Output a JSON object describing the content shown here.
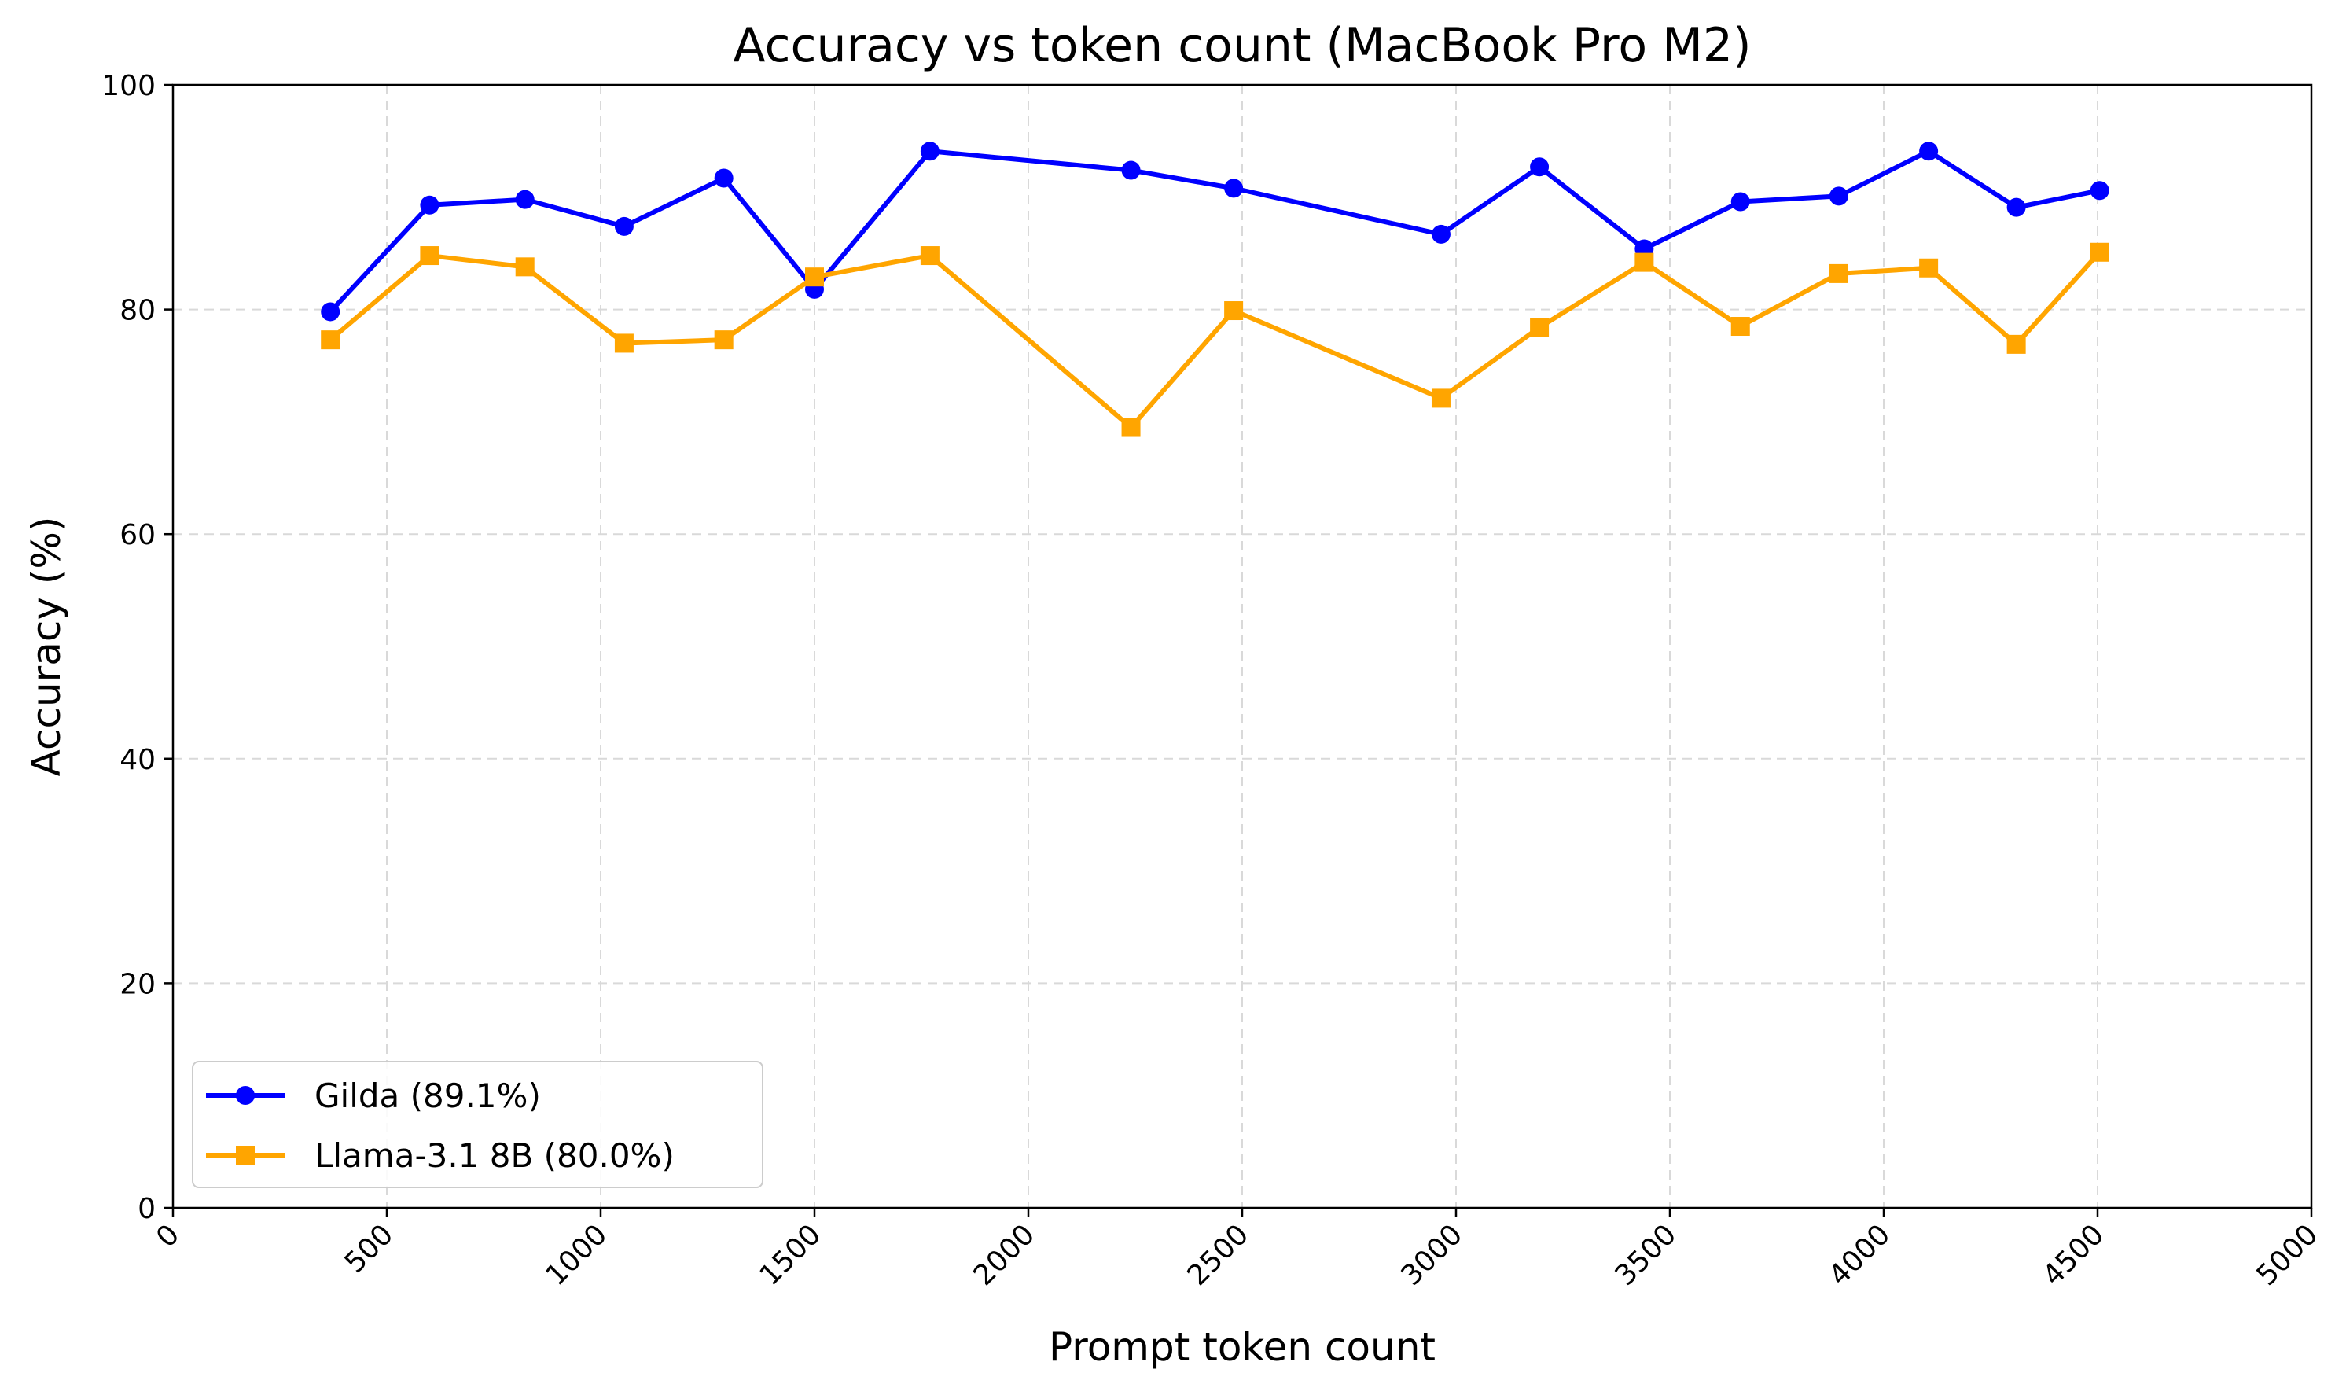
{
  "chart_data": {
    "type": "line",
    "title": "Accuracy vs token count (MacBook Pro M2)",
    "xlabel": "Prompt token count",
    "ylabel": "Accuracy (%)",
    "xlim": [
      0,
      5000
    ],
    "ylim": [
      0,
      100
    ],
    "xticks": [
      "0",
      "500",
      "1000",
      "1500",
      "2000",
      "2500",
      "3000",
      "3500",
      "4000",
      "4500",
      "5000"
    ],
    "yticks": [
      "0",
      "20",
      "40",
      "60",
      "80",
      "100"
    ],
    "grid": true,
    "legend_position": "lower-left",
    "series": [
      {
        "name": "Gilda (89.1%)",
        "color": "#0000ff",
        "marker": "circle",
        "x": [
          368,
          600,
          823,
          1055,
          1288,
          1500,
          1770,
          2240,
          2480,
          2965,
          3195,
          3440,
          3665,
          3895,
          4105,
          4310,
          4505
        ],
        "y": [
          79.8,
          89.3,
          89.8,
          87.4,
          91.7,
          81.8,
          94.1,
          92.4,
          90.8,
          86.7,
          92.7,
          85.4,
          89.6,
          90.1,
          94.1,
          89.1,
          90.6
        ]
      },
      {
        "name": "Llama-3.1 8B (80.0%)",
        "color": "#ffa500",
        "marker": "square",
        "x": [
          368,
          600,
          823,
          1055,
          1288,
          1500,
          1770,
          2240,
          2480,
          2965,
          3195,
          3440,
          3665,
          3895,
          4105,
          4310,
          4505
        ],
        "y": [
          77.3,
          84.8,
          83.8,
          77.0,
          77.3,
          82.9,
          84.8,
          69.5,
          79.9,
          72.1,
          78.4,
          84.2,
          78.5,
          83.2,
          83.7,
          76.9,
          85.1
        ]
      }
    ]
  }
}
